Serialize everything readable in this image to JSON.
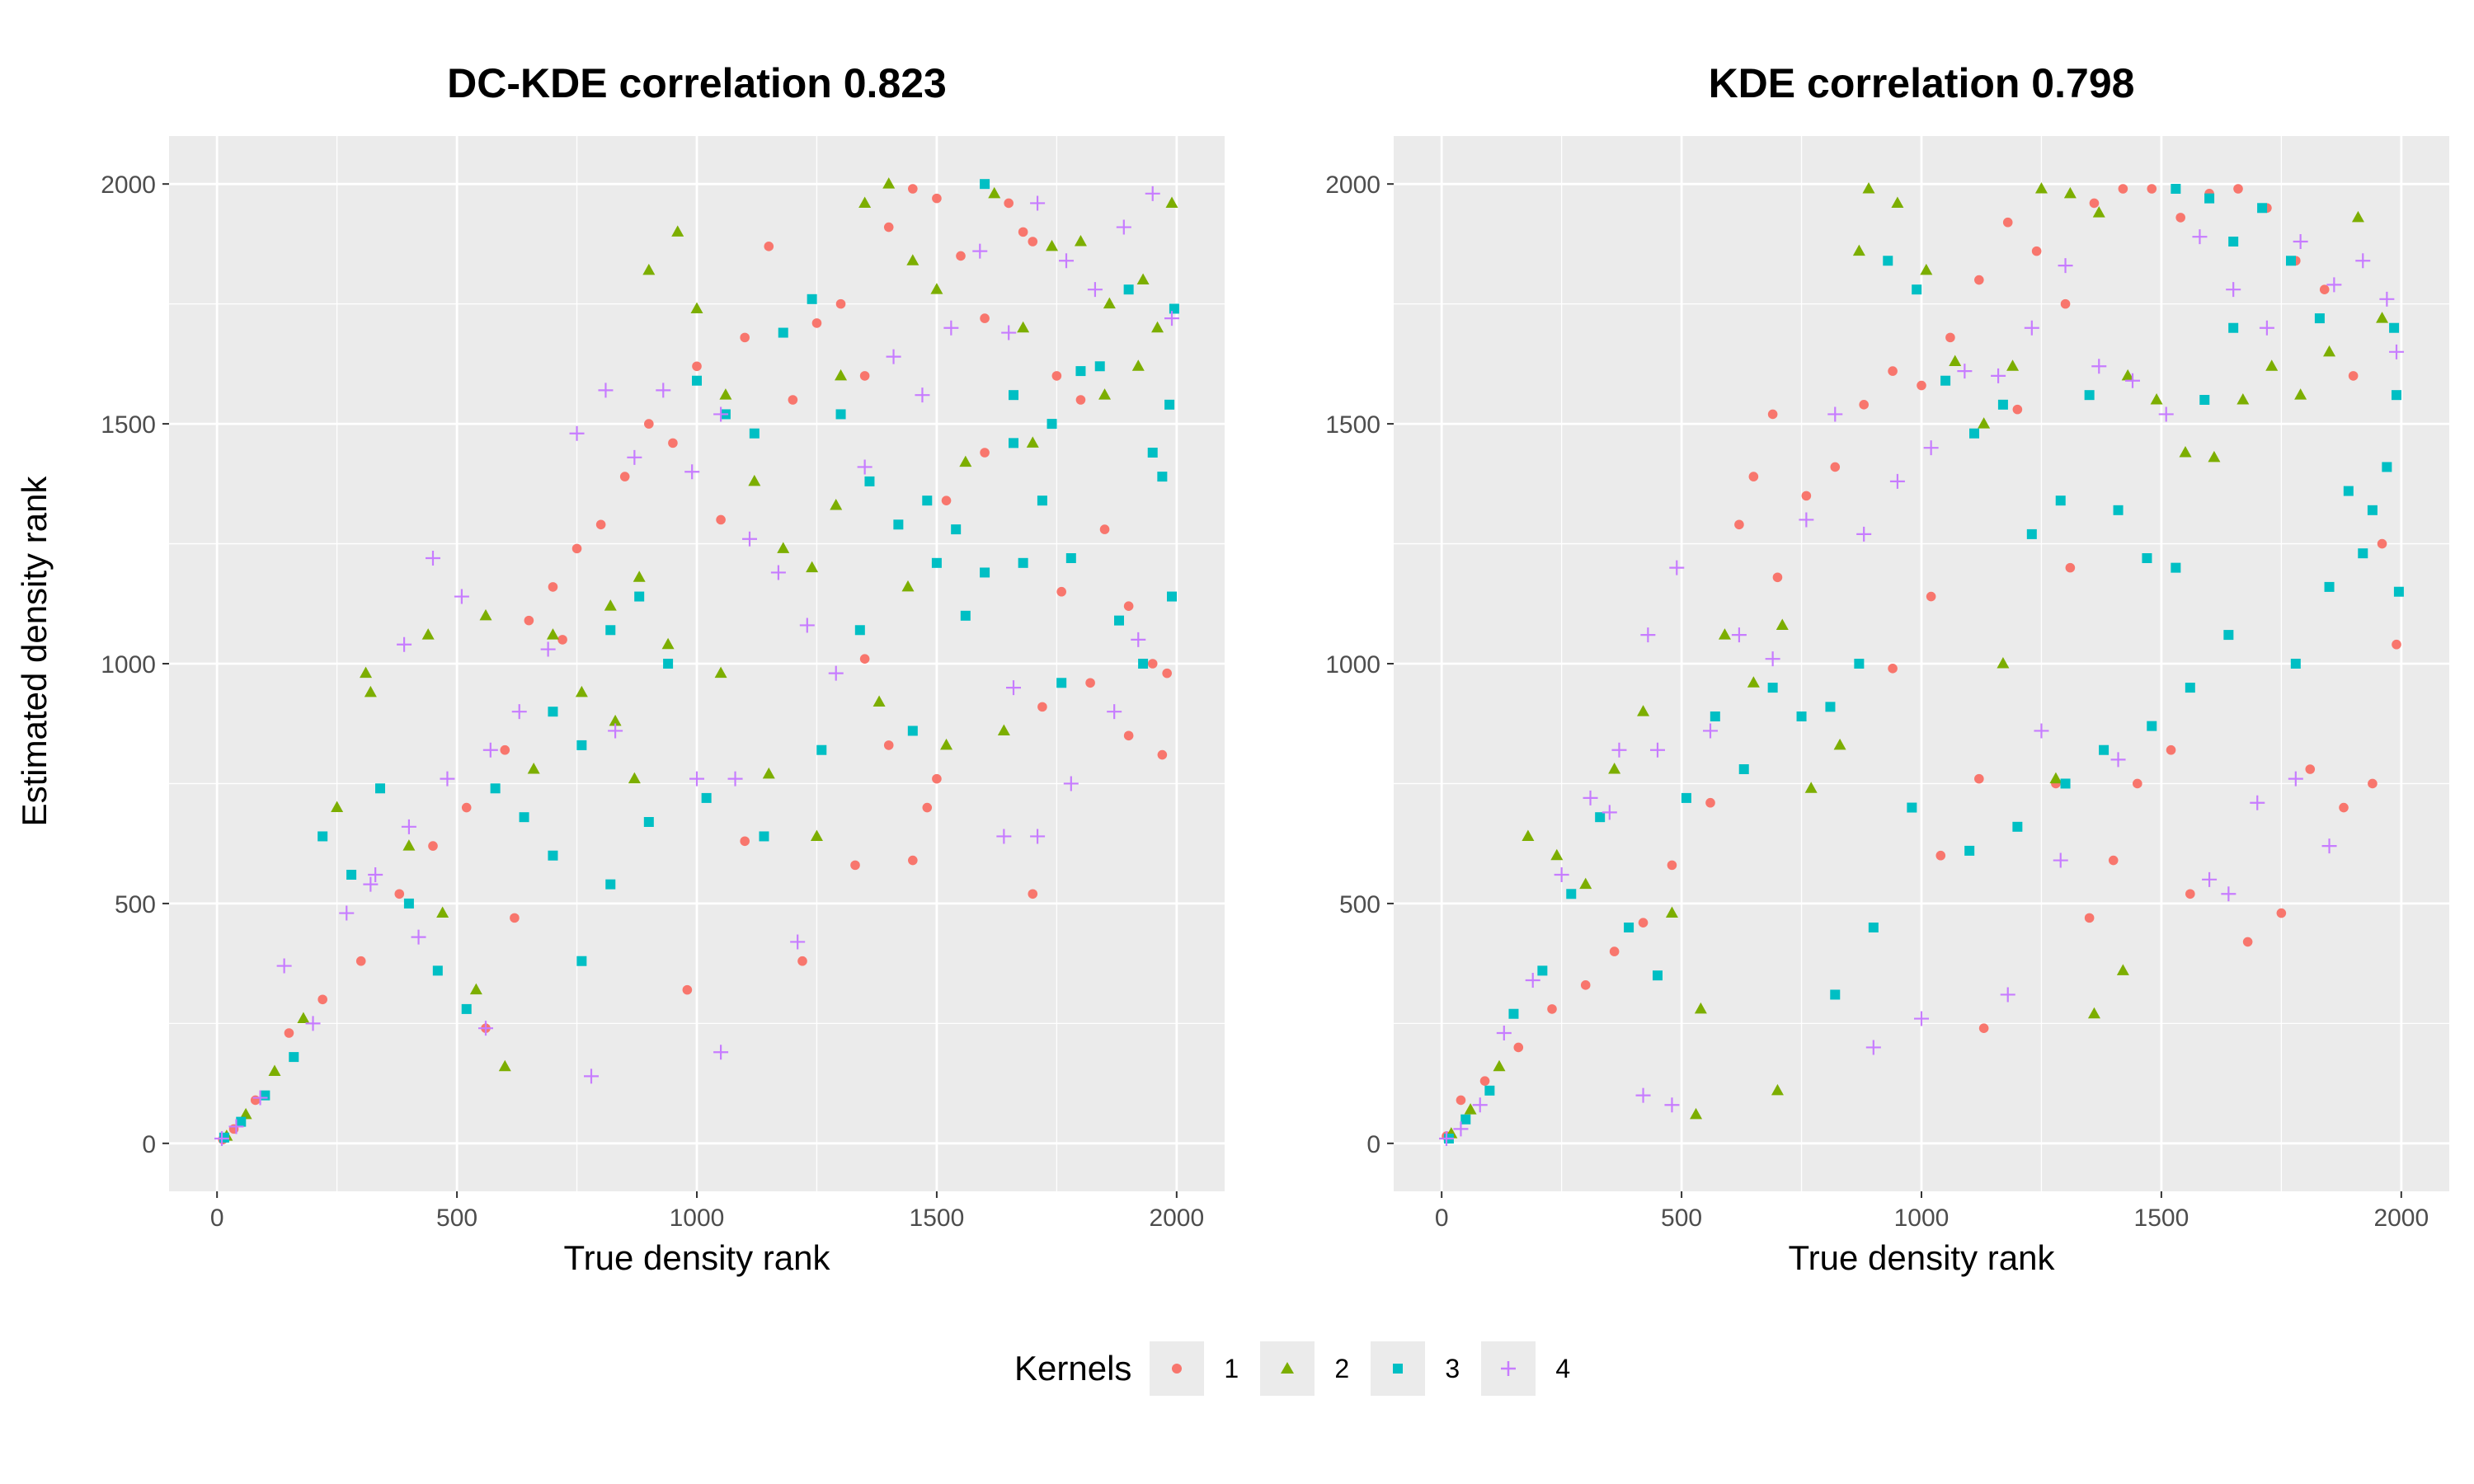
{
  "figure": {
    "legend_title": "Kernels",
    "x_axis_title": "True density rank",
    "y_axis_title": "Estimated density rank"
  },
  "chart_data": [
    {
      "type": "scatter",
      "title": "DC-KDE correlation 0.823",
      "xlabel": "True density rank",
      "ylabel": "Estimated density rank",
      "xlim": [
        -100,
        2100
      ],
      "ylim": [
        -100,
        2100
      ],
      "xticks": [
        0,
        500,
        1000,
        1500,
        2000
      ],
      "yticks": [
        0,
        500,
        1000,
        1500,
        2000
      ],
      "grid": true,
      "legend": "bottom",
      "series": [
        {
          "name": "1",
          "color": "#F8766D",
          "marker": "circle",
          "x": [
            12,
            35,
            80,
            150,
            220,
            300,
            380,
            450,
            520,
            600,
            650,
            700,
            720,
            750,
            800,
            850,
            900,
            950,
            1000,
            1050,
            1100,
            1150,
            1200,
            1250,
            1300,
            1350,
            1400,
            1450,
            1500,
            1550,
            1600,
            1650,
            1700,
            1750,
            1800,
            1850,
            1900,
            1950,
            1980,
            1400,
            1480,
            1520,
            1600,
            1680,
            1720,
            1760,
            1820,
            1900,
            1970,
            1330,
            1450,
            1220,
            560,
            620,
            980,
            1100,
            1350,
            1500,
            1700
          ],
          "y": [
            8,
            30,
            90,
            230,
            300,
            380,
            520,
            620,
            700,
            820,
            1090,
            1160,
            1050,
            1240,
            1290,
            1390,
            1500,
            1460,
            1620,
            1300,
            1680,
            1870,
            1550,
            1710,
            1750,
            1600,
            1910,
            1990,
            1970,
            1850,
            1720,
            1960,
            1880,
            1600,
            1550,
            1280,
            1120,
            1000,
            980,
            830,
            700,
            1340,
            1440,
            1900,
            910,
            1150,
            960,
            850,
            810,
            580,
            590,
            380,
            240,
            470,
            320,
            630,
            1010,
            760,
            520
          ]
        },
        {
          "name": "2",
          "color": "#7CAE00",
          "marker": "triangle",
          "x": [
            20,
            60,
            120,
            180,
            250,
            320,
            400,
            470,
            540,
            600,
            660,
            700,
            760,
            820,
            880,
            900,
            960,
            1000,
            1060,
            1120,
            1180,
            1240,
            1300,
            1350,
            1400,
            1450,
            1500,
            1560,
            1620,
            1680,
            1740,
            1800,
            1860,
            1920,
            1960,
            1990,
            310,
            440,
            560,
            830,
            870,
            940,
            1050,
            1150,
            1250,
            1380,
            1520,
            1640,
            1700,
            1850,
            1930,
            1290,
            1440
          ],
          "y": [
            15,
            60,
            150,
            260,
            700,
            940,
            620,
            480,
            320,
            160,
            780,
            1060,
            940,
            1120,
            1180,
            1820,
            1900,
            1740,
            1560,
            1380,
            1240,
            1200,
            1600,
            1960,
            2000,
            1840,
            1780,
            1420,
            1980,
            1700,
            1870,
            1880,
            1750,
            1620,
            1700,
            1960,
            980,
            1060,
            1100,
            880,
            760,
            1040,
            980,
            770,
            640,
            920,
            830,
            860,
            1460,
            1560,
            1800,
            1330,
            1160
          ]
        },
        {
          "name": "3",
          "color": "#00BFC4",
          "marker": "square",
          "x": [
            15,
            50,
            100,
            160,
            220,
            280,
            340,
            400,
            460,
            520,
            580,
            640,
            700,
            760,
            820,
            880,
            940,
            1000,
            1060,
            1120,
            1180,
            1240,
            1300,
            1360,
            1420,
            1480,
            1540,
            1600,
            1660,
            1720,
            1780,
            1840,
            1900,
            1950,
            1970,
            1985,
            1995,
            1990,
            1930,
            1880,
            1760,
            1680,
            1560,
            1450,
            1340,
            1260,
            1140,
            1020,
            900,
            820,
            760,
            700,
            1800,
            1740,
            1660,
            1600,
            1500
          ],
          "y": [
            12,
            45,
            100,
            180,
            640,
            560,
            740,
            500,
            360,
            280,
            740,
            680,
            900,
            830,
            1070,
            1140,
            1000,
            1590,
            1520,
            1480,
            1690,
            1760,
            1520,
            1380,
            1290,
            1340,
            1280,
            2000,
            1560,
            1340,
            1220,
            1620,
            1780,
            1440,
            1390,
            1540,
            1740,
            1140,
            1000,
            1090,
            960,
            1210,
            1100,
            860,
            1070,
            820,
            640,
            720,
            670,
            540,
            380,
            600,
            1610,
            1500,
            1460,
            1190,
            1210
          ]
        },
        {
          "name": "4",
          "color": "#C77CFF",
          "marker": "plus",
          "x": [
            10,
            40,
            90,
            140,
            200,
            270,
            330,
            390,
            450,
            510,
            570,
            630,
            690,
            750,
            810,
            870,
            930,
            990,
            1050,
            1110,
            1170,
            1230,
            1290,
            1350,
            1410,
            1470,
            1530,
            1590,
            1650,
            1710,
            1770,
            1830,
            1890,
            1950,
            1990,
            480,
            400,
            320,
            420,
            830,
            1000,
            1080,
            1210,
            1640,
            1660,
            1710,
            1780,
            1870,
            1920,
            780,
            560,
            1050
          ],
          "y": [
            10,
            35,
            95,
            370,
            250,
            480,
            560,
            1040,
            1220,
            1140,
            820,
            900,
            1030,
            1480,
            1570,
            1430,
            1570,
            1400,
            1520,
            1260,
            1190,
            1080,
            980,
            1410,
            1640,
            1560,
            1700,
            1860,
            1690,
            1960,
            1840,
            1780,
            1910,
            1980,
            1720,
            760,
            660,
            540,
            430,
            860,
            760,
            760,
            420,
            640,
            950,
            640,
            750,
            900,
            1050,
            140,
            240,
            190
          ]
        }
      ]
    },
    {
      "type": "scatter",
      "title": "KDE correlation 0.798",
      "xlabel": "True density rank",
      "ylabel": "",
      "xlim": [
        -100,
        2100
      ],
      "ylim": [
        -100,
        2100
      ],
      "xticks": [
        0,
        500,
        1000,
        1500,
        2000
      ],
      "yticks": [
        0,
        500,
        1000,
        1500,
        2000
      ],
      "grid": true,
      "legend": "bottom",
      "series": [
        {
          "name": "1",
          "color": "#F8766D",
          "marker": "circle",
          "x": [
            10,
            40,
            90,
            160,
            230,
            300,
            360,
            420,
            480,
            560,
            620,
            700,
            760,
            820,
            880,
            940,
            1000,
            1060,
            1120,
            1180,
            1240,
            1300,
            1360,
            1420,
            1480,
            1540,
            1600,
            1660,
            1720,
            1780,
            1840,
            1900,
            1960,
            1990,
            650,
            690,
            940,
            1020,
            1120,
            1280,
            1350,
            1400,
            1450,
            1520,
            1560,
            1680,
            1750,
            1810,
            1880,
            1940,
            1200,
            1310,
            1040,
            1130
          ],
          "y": [
            15,
            90,
            130,
            200,
            280,
            330,
            400,
            460,
            580,
            710,
            1290,
            1180,
            1350,
            1410,
            1540,
            1610,
            1580,
            1680,
            1800,
            1920,
            1860,
            1750,
            1960,
            1990,
            1990,
            1930,
            1980,
            1990,
            1950,
            1840,
            1780,
            1600,
            1250,
            1040,
            1390,
            1520,
            990,
            1140,
            760,
            750,
            470,
            590,
            750,
            820,
            520,
            420,
            480,
            780,
            700,
            750,
            1530,
            1200,
            600,
            240
          ]
        },
        {
          "name": "2",
          "color": "#7CAE00",
          "marker": "triangle",
          "x": [
            20,
            60,
            120,
            180,
            240,
            300,
            360,
            420,
            480,
            530,
            590,
            650,
            710,
            770,
            830,
            870,
            890,
            950,
            1010,
            1070,
            1130,
            1190,
            1250,
            1310,
            1370,
            1430,
            1490,
            1550,
            1610,
            1670,
            1730,
            1790,
            1850,
            1910,
            1960,
            540,
            700,
            1170,
            1360,
            1420,
            1280
          ],
          "y": [
            20,
            70,
            160,
            640,
            600,
            540,
            780,
            900,
            480,
            60,
            1060,
            960,
            1080,
            740,
            830,
            1860,
            1990,
            1960,
            1820,
            1630,
            1500,
            1620,
            1990,
            1980,
            1940,
            1600,
            1550,
            1440,
            1430,
            1550,
            1620,
            1560,
            1650,
            1930,
            1720,
            280,
            110,
            1000,
            270,
            360,
            760
          ]
        },
        {
          "name": "3",
          "color": "#00BFC4",
          "marker": "square",
          "x": [
            15,
            50,
            100,
            150,
            210,
            270,
            330,
            390,
            450,
            510,
            570,
            630,
            690,
            750,
            810,
            870,
            930,
            990,
            1050,
            1110,
            1170,
            1230,
            1290,
            1350,
            1410,
            1470,
            1530,
            1590,
            1650,
            1710,
            1770,
            1830,
            1890,
            1940,
            1970,
            1990,
            1995,
            1985,
            1920,
            1850,
            1780,
            1640,
            1560,
            1480,
            1380,
            1300,
            1200,
            1100,
            980,
            900,
            820,
            1530,
            1600,
            1650
          ],
          "y": [
            10,
            50,
            110,
            270,
            360,
            520,
            680,
            450,
            350,
            720,
            890,
            780,
            950,
            890,
            910,
            1000,
            1840,
            1780,
            1590,
            1480,
            1540,
            1270,
            1340,
            1560,
            1320,
            1220,
            1200,
            1550,
            1880,
            1950,
            1840,
            1720,
            1360,
            1320,
            1410,
            1560,
            1150,
            1700,
            1230,
            1160,
            1000,
            1060,
            950,
            870,
            820,
            750,
            660,
            610,
            700,
            450,
            310,
            1990,
            1970,
            1700
          ]
        },
        {
          "name": "4",
          "color": "#C77CFF",
          "marker": "plus",
          "x": [
            10,
            40,
            80,
            130,
            190,
            250,
            310,
            370,
            430,
            490,
            560,
            620,
            690,
            760,
            820,
            880,
            950,
            1020,
            1090,
            1160,
            1230,
            1300,
            1370,
            1440,
            1510,
            1580,
            1650,
            1720,
            1790,
            1860,
            1920,
            1970,
            1990,
            420,
            480,
            350,
            450,
            1180,
            1250,
            1290,
            1410,
            1600,
            1640,
            1700,
            1780,
            1850,
            900,
            1000
          ],
          "y": [
            10,
            30,
            80,
            230,
            340,
            560,
            720,
            820,
            1060,
            1200,
            860,
            1060,
            1010,
            1300,
            1520,
            1270,
            1380,
            1450,
            1610,
            1600,
            1700,
            1830,
            1620,
            1590,
            1520,
            1890,
            1780,
            1700,
            1880,
            1790,
            1840,
            1760,
            1650,
            100,
            80,
            690,
            820,
            310,
            860,
            590,
            800,
            550,
            520,
            710,
            760,
            620,
            200,
            260
          ]
        }
      ]
    }
  ]
}
